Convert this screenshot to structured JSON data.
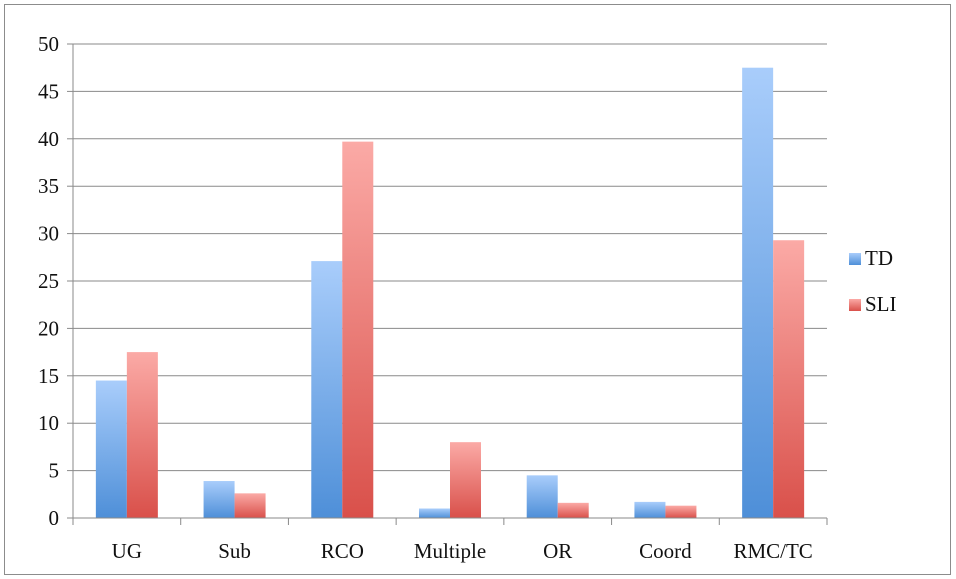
{
  "chart_data": {
    "type": "bar",
    "categories": [
      "UG",
      "Sub",
      "RCO",
      "Multiple",
      "OR",
      "Coord",
      "RMC/TC"
    ],
    "series": [
      {
        "name": "TD",
        "values": [
          14.5,
          3.9,
          27.1,
          1.0,
          4.5,
          1.7,
          47.5
        ],
        "color_top": "#a9cdfb",
        "color_bottom": "#4e8fd8"
      },
      {
        "name": "SLI",
        "values": [
          17.5,
          2.6,
          39.7,
          8.0,
          1.6,
          1.3,
          29.3
        ],
        "color_top": "#fbaaa6",
        "color_bottom": "#d9504a"
      }
    ],
    "ylim": [
      0,
      50
    ],
    "yticks": [
      0,
      5,
      10,
      15,
      20,
      25,
      30,
      35,
      40,
      45,
      50
    ],
    "grid": true,
    "legend_position": "right",
    "title": "",
    "xlabel": "",
    "ylabel": ""
  }
}
